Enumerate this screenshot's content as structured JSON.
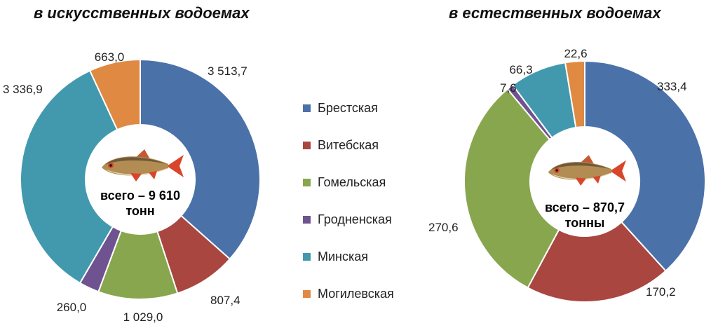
{
  "chart_data": [
    {
      "type": "pie",
      "title": "в искусственных водоемах",
      "center_label": [
        "всего – 9 610",
        "тонн"
      ],
      "categories": [
        "Брестская",
        "Витебская",
        "Гомельская",
        "Гродненская",
        "Минская",
        "Могилевская"
      ],
      "values": [
        3513.7,
        807.4,
        1029.0,
        260.0,
        3336.9,
        663.0
      ],
      "value_labels": [
        "3 513,7",
        "807,4",
        "1 029,0",
        "260,0",
        "3 336,9",
        "663,0"
      ]
    },
    {
      "type": "pie",
      "title": "в естественных водоемах",
      "center_label": [
        "всего – 870,7",
        "тонны"
      ],
      "categories": [
        "Брестская",
        "Витебская",
        "Гомельская",
        "Гродненская",
        "Минская",
        "Могилевская"
      ],
      "values": [
        333.4,
        170.2,
        270.6,
        7.6,
        66.3,
        22.6
      ],
      "value_labels": [
        "333,4",
        "170,2",
        "270,6",
        "7,6",
        "66,3",
        "22,6"
      ]
    }
  ],
  "legend": {
    "items": [
      "Брестская",
      "Витебская",
      "Гомельская",
      "Гродненская",
      "Минская",
      "Могилевская"
    ],
    "colors": [
      "#4a72a9",
      "#a9463f",
      "#88a64e",
      "#6f5391",
      "#4299ae",
      "#df8942"
    ]
  },
  "icons": {
    "center_image": "fish-icon"
  }
}
